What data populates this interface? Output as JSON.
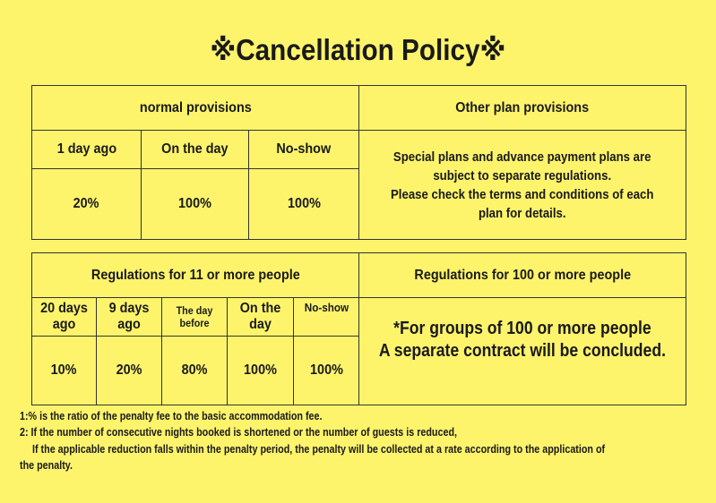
{
  "title": "※Cancellation Policy※",
  "table1": {
    "left_header": "normal provisions",
    "columns": [
      "1 day ago",
      "On the day",
      "No-show"
    ],
    "values": [
      "20%",
      "100%",
      "100%"
    ],
    "right_header": "Other plan provisions",
    "right_text": [
      "Special plans and advance payment plans are",
      "subject to separate regulations.",
      "Please check the terms and conditions of each",
      "plan for details."
    ]
  },
  "table2": {
    "left_header": "Regulations for 11 or more people",
    "columns": [
      "20 days ago",
      "9 days ago",
      "The day before",
      "On the day",
      "No-show"
    ],
    "values": [
      "10%",
      "20%",
      "80%",
      "100%",
      "100%"
    ],
    "right_header": "Regulations for 100 or more people",
    "right_text": [
      "*For groups of 100 or more people",
      "A separate contract will be concluded."
    ]
  },
  "notes": [
    "1:% is the ratio of the penalty fee to the basic accommodation fee.",
    "2: If the number of consecutive nights booked is shortened or the number of guests is reduced,",
    "If the applicable reduction falls within the penalty period, the penalty will be collected at a rate according to the application of",
    "the penalty."
  ]
}
